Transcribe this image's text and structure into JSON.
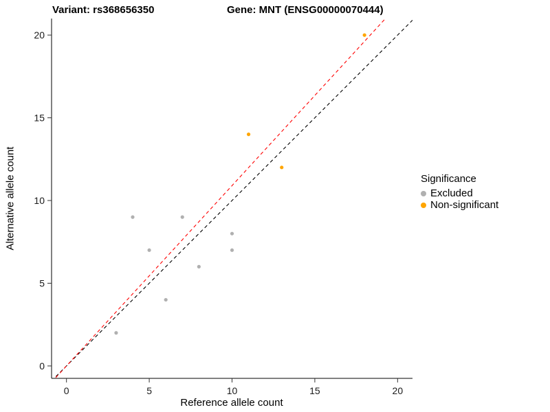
{
  "chart_data": {
    "type": "scatter",
    "title_variant": "Variant: rs368656350",
    "title_gene": "Gene: MNT (ENSG00000070444)",
    "xlabel": "Reference allele count",
    "ylabel": "Alternative allele count",
    "xlim": [
      -0.9,
      20.9
    ],
    "ylim": [
      -0.75,
      21.0
    ],
    "xticks": [
      0,
      5,
      10,
      15,
      20
    ],
    "yticks": [
      0,
      5,
      10,
      15,
      20
    ],
    "grid": false,
    "series": [
      {
        "name": "Excluded",
        "color": "#b0b0b0",
        "points": [
          [
            3,
            2
          ],
          [
            4,
            9
          ],
          [
            5,
            7
          ],
          [
            6,
            4
          ],
          [
            7,
            9
          ],
          [
            8,
            6
          ],
          [
            10,
            7
          ],
          [
            10,
            8
          ]
        ]
      },
      {
        "name": "Non-significant",
        "color": "#ffa500",
        "points": [
          [
            11,
            14
          ],
          [
            13,
            12
          ],
          [
            18,
            20
          ]
        ]
      }
    ],
    "lines": [
      {
        "name": "identity-line",
        "slope": 1.0,
        "intercept": 0,
        "color": "#000000",
        "style": "dashed"
      },
      {
        "name": "fit-line",
        "slope": 1.09,
        "intercept": 0,
        "color": "#ff0000",
        "style": "dashed"
      }
    ],
    "legend": {
      "title": "Significance",
      "position": "right",
      "entries": [
        {
          "label": "Excluded",
          "color": "#b0b0b0"
        },
        {
          "label": "Non-significant",
          "color": "#ffa500"
        }
      ]
    }
  }
}
